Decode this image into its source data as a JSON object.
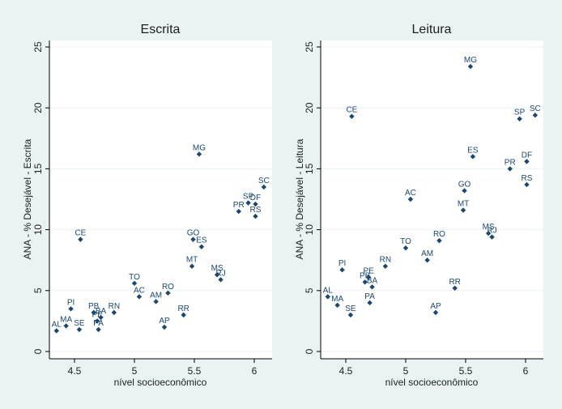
{
  "chart_data": [
    {
      "type": "scatter",
      "title": "Escrita",
      "xlabel": "nível socioeconômico",
      "ylabel": "ANA - % Desejável - Escrita",
      "xlim": [
        4.3,
        6.1
      ],
      "ylim": [
        0,
        25
      ],
      "xticks": [
        "4.5",
        "5",
        "5.5",
        "6"
      ],
      "yticks": [
        "0",
        "5",
        "10",
        "15",
        "20",
        "25"
      ],
      "grid": true,
      "marker_color": "#1a476f",
      "points": [
        {
          "label": "AL",
          "x": 4.35,
          "y": 1.7
        },
        {
          "label": "MA",
          "x": 4.43,
          "y": 2.1
        },
        {
          "label": "PI",
          "x": 4.47,
          "y": 3.5
        },
        {
          "label": "SE",
          "x": 4.54,
          "y": 1.8
        },
        {
          "label": "CE",
          "x": 4.55,
          "y": 9.2
        },
        {
          "label": "PB",
          "x": 4.66,
          "y": 3.2
        },
        {
          "label": "PE",
          "x": 4.69,
          "y": 2.5
        },
        {
          "label": "BA",
          "x": 4.72,
          "y": 2.8
        },
        {
          "label": "PA",
          "x": 4.7,
          "y": 1.8
        },
        {
          "label": "RN",
          "x": 4.83,
          "y": 3.2
        },
        {
          "label": "TO",
          "x": 5.0,
          "y": 5.6
        },
        {
          "label": "AC",
          "x": 5.04,
          "y": 4.5
        },
        {
          "label": "AM",
          "x": 5.18,
          "y": 4.1
        },
        {
          "label": "RO",
          "x": 5.28,
          "y": 4.8
        },
        {
          "label": "AP",
          "x": 5.25,
          "y": 2.0
        },
        {
          "label": "RR",
          "x": 5.41,
          "y": 3.0
        },
        {
          "label": "MT",
          "x": 5.48,
          "y": 7.0
        },
        {
          "label": "GO",
          "x": 5.49,
          "y": 9.2
        },
        {
          "label": "ES",
          "x": 5.56,
          "y": 8.6
        },
        {
          "label": "MG",
          "x": 5.54,
          "y": 16.2
        },
        {
          "label": "MS",
          "x": 5.69,
          "y": 6.3
        },
        {
          "label": "RJ",
          "x": 5.72,
          "y": 5.9
        },
        {
          "label": "PR",
          "x": 5.87,
          "y": 11.5
        },
        {
          "label": "SP",
          "x": 5.95,
          "y": 12.2
        },
        {
          "label": "DF",
          "x": 6.01,
          "y": 12.1
        },
        {
          "label": "RS",
          "x": 6.01,
          "y": 11.1
        },
        {
          "label": "SC",
          "x": 6.08,
          "y": 13.5
        }
      ]
    },
    {
      "type": "scatter",
      "title": "Leitura",
      "xlabel": "nível socioeconômico",
      "ylabel": "ANA - % Desejável - Leitura",
      "xlim": [
        4.3,
        6.1
      ],
      "ylim": [
        0,
        25
      ],
      "xticks": [
        "4.5",
        "5",
        "5.5",
        "6"
      ],
      "yticks": [
        "0",
        "5",
        "10",
        "15",
        "20",
        "25"
      ],
      "grid": true,
      "marker_color": "#1a476f",
      "points": [
        {
          "label": "AL",
          "x": 4.35,
          "y": 4.5
        },
        {
          "label": "MA",
          "x": 4.43,
          "y": 3.8
        },
        {
          "label": "PI",
          "x": 4.47,
          "y": 6.7
        },
        {
          "label": "SE",
          "x": 4.54,
          "y": 3.0
        },
        {
          "label": "CE",
          "x": 4.55,
          "y": 19.3
        },
        {
          "label": "PB",
          "x": 4.66,
          "y": 5.7
        },
        {
          "label": "PE",
          "x": 4.69,
          "y": 6.1
        },
        {
          "label": "BA",
          "x": 4.72,
          "y": 5.3
        },
        {
          "label": "PA",
          "x": 4.7,
          "y": 4.0
        },
        {
          "label": "RN",
          "x": 4.83,
          "y": 7.0
        },
        {
          "label": "TO",
          "x": 5.0,
          "y": 8.5
        },
        {
          "label": "AC",
          "x": 5.04,
          "y": 12.5
        },
        {
          "label": "AM",
          "x": 5.18,
          "y": 7.5
        },
        {
          "label": "RO",
          "x": 5.28,
          "y": 9.1
        },
        {
          "label": "AP",
          "x": 5.25,
          "y": 3.2
        },
        {
          "label": "RR",
          "x": 5.41,
          "y": 5.2
        },
        {
          "label": "MT",
          "x": 5.48,
          "y": 11.6
        },
        {
          "label": "GO",
          "x": 5.49,
          "y": 13.2
        },
        {
          "label": "ES",
          "x": 5.56,
          "y": 16.0
        },
        {
          "label": "MG",
          "x": 5.54,
          "y": 23.4
        },
        {
          "label": "MS",
          "x": 5.69,
          "y": 9.7
        },
        {
          "label": "RJ",
          "x": 5.72,
          "y": 9.4
        },
        {
          "label": "PR",
          "x": 5.87,
          "y": 15.0
        },
        {
          "label": "SP",
          "x": 5.95,
          "y": 19.1
        },
        {
          "label": "DF",
          "x": 6.01,
          "y": 15.6
        },
        {
          "label": "RS",
          "x": 6.01,
          "y": 13.7
        },
        {
          "label": "SC",
          "x": 6.08,
          "y": 19.4
        }
      ]
    }
  ]
}
